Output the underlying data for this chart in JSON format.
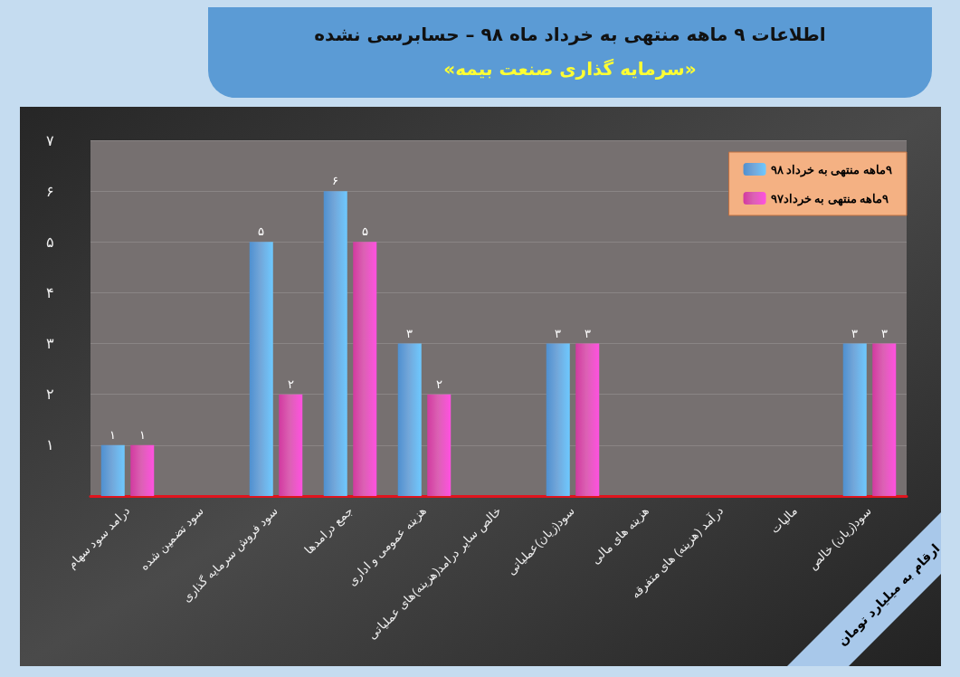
{
  "chart_data": {
    "type": "bar",
    "title": "اطلاعات ۹ ماهه منتهی به خرداد ماه ۹۸ – حسابرسی نشده",
    "subtitle": "«سرمایه گذاری صنعت بیمه»",
    "categories": [
      "درامد سود سهام",
      "سود تضمین شده",
      "سود فروش سرمایه گذاری",
      "جمع درامدها",
      "هزینه عمومی و اداری",
      "خالص سایر درامد(هزینه)های عملیاتی",
      "سود(زیان)عملیاتی",
      "هزینه های مالی",
      "درآمد (هزینه) های متفرقه",
      "مالیات",
      "سود(زیان) خالص"
    ],
    "series": [
      {
        "name": "۹ماهه منتهی به خرداد ۹۸",
        "color": "#4f90d0",
        "values": [
          1,
          null,
          5,
          6,
          3,
          null,
          3,
          null,
          null,
          null,
          3
        ],
        "value_labels": [
          "۱",
          null,
          "۵",
          "۶",
          "۳",
          null,
          "۳",
          null,
          null,
          null,
          "۳"
        ]
      },
      {
        "name": "۹ماهه منتهی به خرداد۹۷",
        "color": "#d23aa0",
        "values": [
          1,
          null,
          2,
          5,
          2,
          null,
          3,
          null,
          null,
          null,
          3
        ],
        "value_labels": [
          "۱",
          null,
          "۲",
          "۵",
          "۲",
          null,
          "۳",
          null,
          null,
          null,
          "۳"
        ]
      }
    ],
    "ylim": [
      0,
      7
    ],
    "yticks": [
      {
        "value": 0,
        "label": null
      },
      {
        "value": 1,
        "label": "۱"
      },
      {
        "value": 2,
        "label": "۲"
      },
      {
        "value": 3,
        "label": "۳"
      },
      {
        "value": 4,
        "label": "۴"
      },
      {
        "value": 5,
        "label": "۵"
      },
      {
        "value": 6,
        "label": "۶"
      },
      {
        "value": 7,
        "label": "۷"
      }
    ],
    "grid": "y",
    "legend": "top right",
    "annotations": [
      "ارقام به میلیارد تومان"
    ]
  }
}
